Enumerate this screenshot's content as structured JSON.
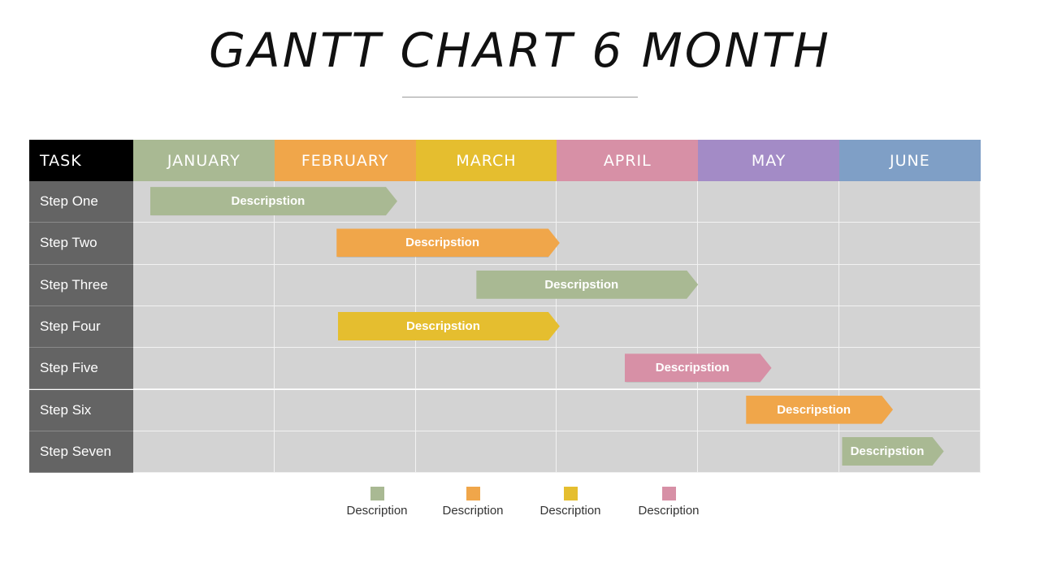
{
  "title": "GANTT CHART 6 MONTH",
  "chart_data": {
    "type": "gantt",
    "title": "GANTT CHART 6 MONTH",
    "task_header": "TASK",
    "months": [
      {
        "label": "JANUARY",
        "color": "#a9b993"
      },
      {
        "label": "FEBRUARY",
        "color": "#f0a64a"
      },
      {
        "label": "MARCH",
        "color": "#e5be2f"
      },
      {
        "label": "APRIL",
        "color": "#d790a6"
      },
      {
        "label": "MAY",
        "color": "#a38bc6"
      },
      {
        "label": "JUNE",
        "color": "#7f9fc6"
      }
    ],
    "tasks": [
      {
        "name": "Step One",
        "bar_label": "Descripstion",
        "start": 0.12,
        "end": 1.87,
        "color": "#a9b993"
      },
      {
        "name": "Step Two",
        "bar_label": "Descripstion",
        "start": 1.44,
        "end": 3.02,
        "color": "#f0a64a"
      },
      {
        "name": "Step Three",
        "bar_label": "Descripstion",
        "start": 2.43,
        "end": 4.0,
        "color": "#a9b993"
      },
      {
        "name": "Step Four",
        "bar_label": "Descripstion",
        "start": 1.45,
        "end": 3.02,
        "color": "#e5be2f"
      },
      {
        "name": "Step Five",
        "bar_label": "Descripstion",
        "start": 3.48,
        "end": 4.52,
        "color": "#d790a6"
      },
      {
        "name": "Step Six",
        "bar_label": "Descripstion",
        "start": 4.34,
        "end": 5.38,
        "color": "#f0a64a"
      },
      {
        "name": "Step Seven",
        "bar_label": "Descripstion",
        "start": 5.02,
        "end": 5.74,
        "color": "#a9b993"
      }
    ],
    "legend": [
      {
        "label": "Description",
        "color": "#a9b993"
      },
      {
        "label": "Description",
        "color": "#f0a64a"
      },
      {
        "label": "Description",
        "color": "#e5be2f"
      },
      {
        "label": "Description",
        "color": "#d790a6"
      }
    ]
  }
}
